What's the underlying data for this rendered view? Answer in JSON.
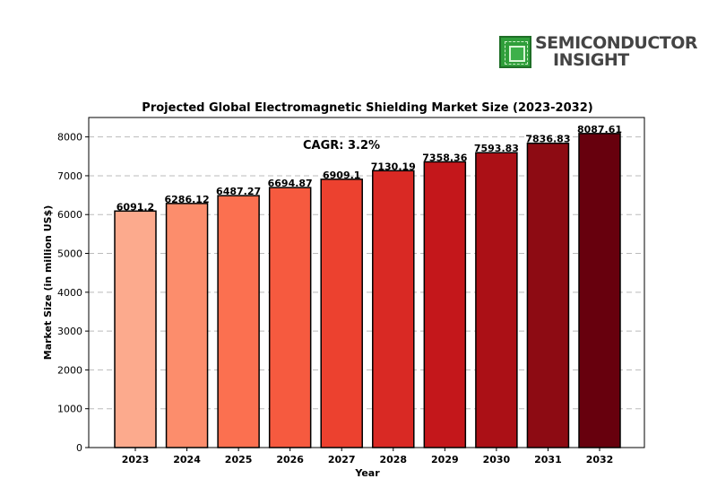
{
  "logo": {
    "line1": "SEMICONDUCTOR",
    "line2": "INSIGHT",
    "icon": "chip-icon"
  },
  "chart_data": {
    "type": "bar",
    "title": "Projected Global Electromagnetic Shielding Market Size (2023-2032)",
    "xlabel": "Year",
    "ylabel": "Market Size (in million US$)",
    "annotation": "CAGR: 3.2%",
    "categories": [
      "2023",
      "2024",
      "2025",
      "2026",
      "2027",
      "2028",
      "2029",
      "2030",
      "2031",
      "2032"
    ],
    "values": [
      6091.2,
      6286.12,
      6487.27,
      6694.87,
      6909.1,
      7130.19,
      7358.36,
      7593.83,
      7836.83,
      8087.61
    ],
    "value_labels": [
      "6091.2",
      "6286.12",
      "6487.27",
      "6694.87",
      "6909.1",
      "7130.19",
      "7358.36",
      "7593.83",
      "7836.83",
      "8087.61"
    ],
    "ylim": [
      0,
      8500
    ],
    "yticks": [
      0,
      1000,
      2000,
      3000,
      4000,
      5000,
      6000,
      7000,
      8000
    ],
    "grid": "horizontal dashed",
    "colors": [
      "#fcaa8d",
      "#fc8d6c",
      "#fb7050",
      "#f65a3f",
      "#ec412f",
      "#d92924",
      "#c4171b",
      "#ab1016",
      "#8d0b13",
      "#67000d"
    ]
  }
}
